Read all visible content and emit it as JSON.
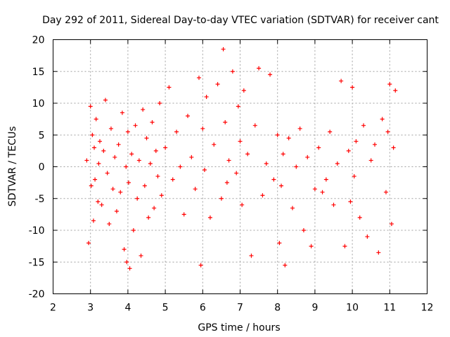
{
  "chart_data": {
    "type": "scatter",
    "title": "Day 292 of 2011, Sidereal Day-to-day VTEC variation (SDTVAR) for receiver cant",
    "xlabel": "GPS time / hours",
    "ylabel": "SDTVAR / TECUs",
    "xlim": [
      2,
      12
    ],
    "ylim": [
      -20,
      20
    ],
    "xticks": [
      "2",
      "3",
      "4",
      "5",
      "6",
      "7",
      "8",
      "9",
      "10",
      "11",
      "12"
    ],
    "yticks": [
      "-20",
      "-15",
      "-10",
      "-5",
      "0",
      "5",
      "10",
      "15",
      "20"
    ],
    "grid": true,
    "marker": "+",
    "color": "#ff0000",
    "series": [
      {
        "name": "SDTVAR",
        "x": [
          2.9,
          2.95,
          3.0,
          3.02,
          3.05,
          3.08,
          3.1,
          3.12,
          3.15,
          3.2,
          3.22,
          3.25,
          3.3,
          3.35,
          3.4,
          3.45,
          3.5,
          3.55,
          3.6,
          3.65,
          3.7,
          3.75,
          3.8,
          3.85,
          3.9,
          3.95,
          3.97,
          4.0,
          4.02,
          4.05,
          4.1,
          4.15,
          4.2,
          4.25,
          4.3,
          4.35,
          4.4,
          4.45,
          4.5,
          4.55,
          4.6,
          4.65,
          4.7,
          4.75,
          4.8,
          4.85,
          4.9,
          5.0,
          5.1,
          5.2,
          5.3,
          5.4,
          5.5,
          5.6,
          5.7,
          5.8,
          5.9,
          5.95,
          6.0,
          6.05,
          6.1,
          6.2,
          6.3,
          6.4,
          6.5,
          6.55,
          6.6,
          6.65,
          6.7,
          6.8,
          6.9,
          6.95,
          7.0,
          7.05,
          7.1,
          7.2,
          7.3,
          7.4,
          7.5,
          7.6,
          7.7,
          7.8,
          7.9,
          8.0,
          8.05,
          8.1,
          8.15,
          8.2,
          8.3,
          8.4,
          8.5,
          8.6,
          8.7,
          8.8,
          8.9,
          9.0,
          9.1,
          9.2,
          9.3,
          9.4,
          9.5,
          9.6,
          9.7,
          9.8,
          9.9,
          9.95,
          10.0,
          10.05,
          10.1,
          10.2,
          10.3,
          10.4,
          10.5,
          10.6,
          10.7,
          10.8,
          10.9,
          10.95,
          11.0,
          11.05,
          11.1,
          11.15
        ],
        "y": [
          1.0,
          -12.0,
          9.5,
          -3.0,
          5.0,
          -8.5,
          3.0,
          -2.0,
          7.5,
          -5.5,
          0.5,
          4.0,
          -6.0,
          2.5,
          10.5,
          -1.0,
          -9.0,
          6.0,
          -3.5,
          1.5,
          -7.0,
          3.5,
          -4.0,
          8.5,
          -13.0,
          0.0,
          -15.0,
          5.5,
          -2.5,
          -16.0,
          2.0,
          -10.0,
          6.5,
          -5.0,
          1.0,
          -14.0,
          9.0,
          -3.0,
          4.5,
          -8.0,
          0.5,
          7.0,
          -6.5,
          2.5,
          -1.5,
          10.0,
          -4.5,
          3.0,
          12.5,
          -2.0,
          5.5,
          0.0,
          -7.5,
          8.0,
          1.5,
          -3.5,
          14.0,
          -15.5,
          6.0,
          -0.5,
          11.0,
          -8.0,
          3.5,
          13.0,
          -5.0,
          18.5,
          7.0,
          -2.5,
          1.0,
          15.0,
          -1.0,
          9.5,
          4.0,
          -6.0,
          12.0,
          2.0,
          -14.0,
          6.5,
          15.5,
          -4.5,
          0.5,
          14.5,
          -2.0,
          5.0,
          -12.0,
          -3.0,
          2.0,
          -15.5,
          4.5,
          -6.5,
          0.0,
          6.0,
          -10.0,
          1.5,
          -12.5,
          -3.5,
          3.0,
          -4.0,
          -2.0,
          5.5,
          -6.0,
          0.5,
          13.5,
          -12.5,
          2.5,
          -5.5,
          12.5,
          -1.5,
          4.0,
          -8.0,
          6.5,
          -11.0,
          1.0,
          3.5,
          -13.5,
          7.5,
          -4.0,
          5.5,
          13.0,
          -9.0,
          3.0,
          12.0
        ]
      }
    ]
  }
}
